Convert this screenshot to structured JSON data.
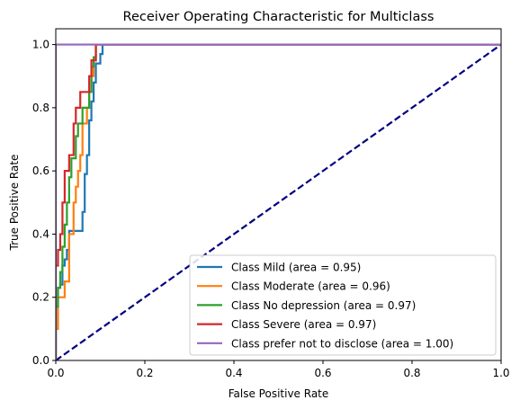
{
  "chart_data": {
    "type": "line",
    "title": "Receiver Operating Characteristic for Multiclass",
    "xlabel": "False Positive Rate",
    "ylabel": "True Positive Rate",
    "xlim": [
      0.0,
      1.0
    ],
    "ylim": [
      0.0,
      1.05
    ],
    "xticks": [
      0.0,
      0.2,
      0.4,
      0.6,
      0.8,
      1.0
    ],
    "xtick_labels": [
      "0.0",
      "0.2",
      "0.4",
      "0.6",
      "0.8",
      "1.0"
    ],
    "yticks": [
      0.0,
      0.2,
      0.4,
      0.6,
      0.8,
      1.0
    ],
    "ytick_labels": [
      "0.0",
      "0.2",
      "0.4",
      "0.6",
      "0.8",
      "1.0"
    ],
    "grid": false,
    "legend_position": "lower-right",
    "series": [
      {
        "name": "Class Mild (area = 0.95)",
        "color": "#1f77b4",
        "x": [
          0,
          0,
          0.005,
          0.005,
          0.01,
          0.01,
          0.015,
          0.015,
          0.02,
          0.02,
          0.025,
          0.025,
          0.03,
          0.03,
          0.035,
          0.035,
          0.06,
          0.06,
          0.065,
          0.065,
          0.07,
          0.07,
          0.075,
          0.075,
          0.08,
          0.08,
          0.085,
          0.085,
          0.09,
          0.09,
          0.1,
          0.1,
          0.105,
          0.105,
          0.11,
          0.11,
          1.0
        ],
        "y": [
          0,
          0.2,
          0.2,
          0.23,
          0.23,
          0.24,
          0.24,
          0.3,
          0.3,
          0.32,
          0.32,
          0.35,
          0.35,
          0.41,
          0.41,
          0.41,
          0.41,
          0.47,
          0.47,
          0.59,
          0.59,
          0.65,
          0.65,
          0.76,
          0.76,
          0.82,
          0.82,
          0.88,
          0.88,
          0.94,
          0.94,
          0.97,
          0.97,
          1.0,
          1.0,
          1.0,
          1.0
        ]
      },
      {
        "name": "Class Moderate (area = 0.96)",
        "color": "#ff7f0e",
        "x": [
          0,
          0,
          0.005,
          0.005,
          0.01,
          0.01,
          0.02,
          0.02,
          0.03,
          0.03,
          0.04,
          0.04,
          0.045,
          0.045,
          0.05,
          0.05,
          0.055,
          0.055,
          0.06,
          0.06,
          0.07,
          0.07,
          0.075,
          0.075,
          0.08,
          0.08,
          0.085,
          0.085,
          0.09,
          0.09,
          1.0
        ],
        "y": [
          0,
          0.1,
          0.1,
          0.2,
          0.2,
          0.2,
          0.2,
          0.25,
          0.25,
          0.4,
          0.4,
          0.5,
          0.5,
          0.55,
          0.55,
          0.6,
          0.6,
          0.65,
          0.65,
          0.75,
          0.75,
          0.8,
          0.8,
          0.85,
          0.85,
          0.9,
          0.9,
          0.95,
          0.95,
          1.0,
          1.0
        ]
      },
      {
        "name": "Class No depression (area = 0.97)",
        "color": "#2ca02c",
        "x": [
          0,
          0,
          0.005,
          0.005,
          0.01,
          0.01,
          0.015,
          0.015,
          0.02,
          0.02,
          0.025,
          0.025,
          0.03,
          0.03,
          0.035,
          0.035,
          0.04,
          0.04,
          0.045,
          0.045,
          0.05,
          0.05,
          0.055,
          0.055,
          0.06,
          0.06,
          0.065,
          0.065,
          0.075,
          0.075,
          0.08,
          0.08,
          0.085,
          0.085,
          0.09,
          0.09,
          1.0
        ],
        "y": [
          0,
          0.17,
          0.17,
          0.23,
          0.23,
          0.28,
          0.28,
          0.36,
          0.36,
          0.43,
          0.43,
          0.5,
          0.5,
          0.58,
          0.58,
          0.64,
          0.64,
          0.64,
          0.64,
          0.71,
          0.71,
          0.75,
          0.75,
          0.75,
          0.75,
          0.8,
          0.8,
          0.8,
          0.8,
          0.85,
          0.85,
          0.93,
          0.93,
          0.96,
          0.96,
          1.0,
          1.0
        ]
      },
      {
        "name": "Class Severe (area = 0.97)",
        "color": "#d62728",
        "x": [
          0,
          0,
          0.005,
          0.005,
          0.01,
          0.01,
          0.015,
          0.015,
          0.02,
          0.02,
          0.025,
          0.025,
          0.03,
          0.03,
          0.035,
          0.035,
          0.04,
          0.04,
          0.045,
          0.045,
          0.05,
          0.05,
          0.055,
          0.055,
          0.06,
          0.06,
          0.075,
          0.075,
          0.08,
          0.08,
          0.085,
          0.085,
          0.09,
          0.09,
          1.0
        ],
        "y": [
          0,
          0.3,
          0.3,
          0.35,
          0.35,
          0.4,
          0.4,
          0.5,
          0.5,
          0.6,
          0.6,
          0.6,
          0.6,
          0.65,
          0.65,
          0.65,
          0.65,
          0.75,
          0.75,
          0.8,
          0.8,
          0.8,
          0.8,
          0.85,
          0.85,
          0.85,
          0.85,
          0.9,
          0.9,
          0.95,
          0.95,
          0.95,
          0.95,
          1.0,
          1.0
        ]
      },
      {
        "name": "Class prefer not to disclose (area = 1.00)",
        "color": "#9467bd",
        "x": [
          0,
          0,
          1.0
        ],
        "y": [
          0,
          1.0,
          1.0
        ]
      }
    ],
    "reference_line": {
      "x": [
        0,
        1
      ],
      "y": [
        0,
        1
      ],
      "color": "#000080",
      "style": "dashed"
    }
  }
}
